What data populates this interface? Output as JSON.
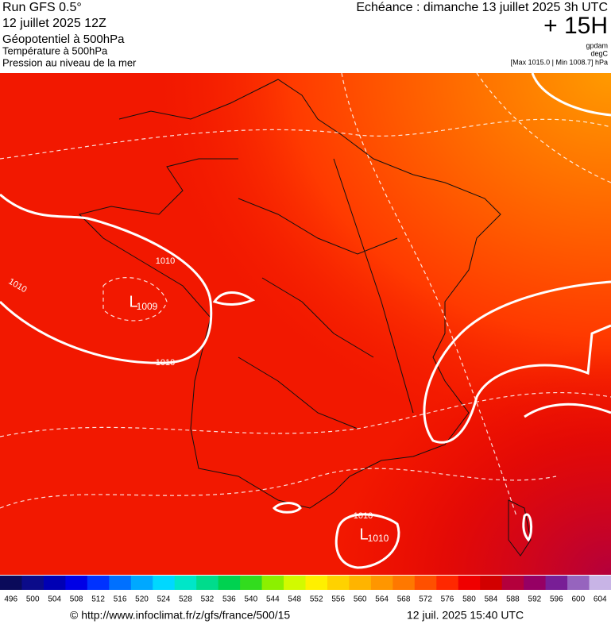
{
  "header": {
    "title": "Run GFS 0.5°",
    "run": "12 juillet 2025 12Z",
    "layers": [
      "Géopotentiel à 500hPa",
      "Température à 500hPa",
      "Pression au niveau de la mer"
    ],
    "echeance": "Echéance : dimanche 13 juillet 2025 3h UTC",
    "lead": "+ 15H",
    "units": [
      "gpdam",
      "degC"
    ],
    "minmax": "[Max 1015.0 | Min 1008.7] hPa"
  },
  "map": {
    "labels": [
      "1010",
      "1010",
      "L",
      "1009",
      "1010",
      "1010",
      "L",
      "1010"
    ]
  },
  "scale": {
    "labels": [
      496,
      500,
      504,
      508,
      512,
      516,
      520,
      524,
      528,
      532,
      536,
      540,
      544,
      548,
      552,
      556,
      560,
      564,
      568,
      572,
      576,
      580,
      584,
      588,
      592,
      596,
      600,
      604
    ],
    "colors": [
      "#0a0a5a",
      "#0b0b8a",
      "#0000b4",
      "#0000e6",
      "#0032ff",
      "#0070ff",
      "#00a8ff",
      "#00d8ff",
      "#00e6c8",
      "#00dc8c",
      "#00d250",
      "#32dc1e",
      "#8cf000",
      "#d2fa00",
      "#fff000",
      "#ffd200",
      "#ffb400",
      "#ff9600",
      "#ff7800",
      "#ff5000",
      "#ff2800",
      "#f00000",
      "#d20000",
      "#b4003c",
      "#960064",
      "#781e96",
      "#9664be",
      "#c8b4e6"
    ]
  },
  "footer": {
    "source": "© http://www.infoclimat.fr/z/gfs/france/500/15",
    "date": "12 juil. 2025 15:40 UTC"
  }
}
